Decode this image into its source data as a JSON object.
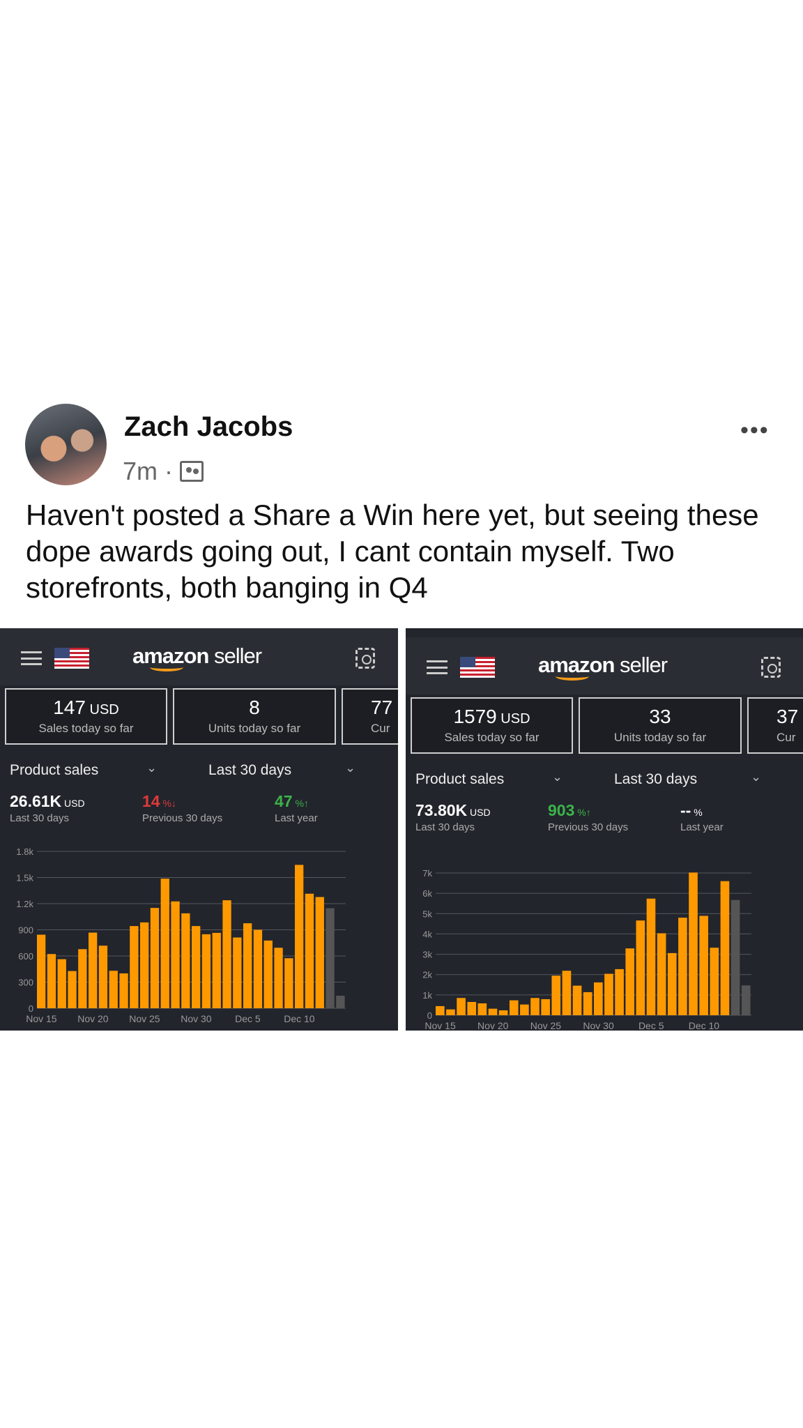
{
  "post": {
    "author": "Zach Jacobs",
    "time": "7m",
    "audience_icon": "group-icon",
    "more_icon": "more-dots-icon",
    "more": "•••",
    "text": "Haven't posted a Share a Win here yet, but seeing these dope awards going out, I cant contain myself. Two storefronts, both banging in Q4"
  },
  "screens": [
    {
      "logo_a": "amazon",
      "logo_b": " seller",
      "sales_value": "147",
      "currency": " USD",
      "sales_label": "Sales today so far",
      "units_value": "8",
      "units_label": "Units today so far",
      "third_value": "77",
      "third_label": "Cur",
      "metric": "Product sales",
      "range": "Last 30 days",
      "total": "26.61K",
      "total_unit": " USD",
      "total_label": "Last 30 days",
      "prev_value": "14",
      "prev_suffix": " %↓",
      "prev_label": "Previous 30 days",
      "prev_color": "#e0393a",
      "year_value": "47",
      "year_suffix": " %↑",
      "year_label": "Last year",
      "year_color": "#3bb34a"
    },
    {
      "logo_a": "amazon",
      "logo_b": " seller",
      "sales_value": "1579",
      "currency": " USD",
      "sales_label": "Sales today so far",
      "units_value": "33",
      "units_label": "Units today so far",
      "third_value": "37",
      "third_label": "Cur",
      "metric": "Product sales",
      "range": "Last 30 days",
      "total": "73.80K",
      "total_unit": " USD",
      "total_label": "Last 30 days",
      "prev_value": "903",
      "prev_suffix": " %↑",
      "prev_label": "Previous 30 days",
      "prev_color": "#3bb34a",
      "year_value": "--",
      "year_suffix": " %",
      "year_label": "Last year",
      "year_color": "#ffffff"
    }
  ],
  "chart_data": [
    {
      "type": "bar",
      "ylim": [
        0,
        1800
      ],
      "yticks": [
        "0",
        "300",
        "600",
        "900",
        "1.2k",
        "1.5k",
        "1.8k"
      ],
      "ytick_values": [
        0,
        300,
        600,
        900,
        1200,
        1500,
        1800
      ],
      "xtick_labels": [
        "Nov 15",
        "Nov 20",
        "Nov 25",
        "Nov 30",
        "Dec 5",
        "Dec 10"
      ],
      "grid": true,
      "bar_color": "#ff9900",
      "comparison_color": "#555555",
      "values": [
        844,
        622,
        563,
        427,
        678,
        868,
        718,
        430,
        400,
        943,
        985,
        1151,
        1487,
        1226,
        1089,
        943,
        849,
        865,
        1239,
        812,
        975,
        900,
        777,
        694,
        574,
        1645,
        1314,
        1276
      ],
      "comparison_values": [
        1148,
        144
      ]
    },
    {
      "type": "bar",
      "ylim": [
        0,
        7000
      ],
      "yticks": [
        "0",
        "1k",
        "2k",
        "3k",
        "4k",
        "5k",
        "6k",
        "7k"
      ],
      "ytick_values": [
        0,
        1000,
        2000,
        3000,
        4000,
        5000,
        6000,
        7000
      ],
      "xtick_labels": [
        "Nov 15",
        "Nov 20",
        "Nov 25",
        "Nov 30",
        "Dec 5",
        "Dec 10"
      ],
      "grid": true,
      "bar_color": "#ff9900",
      "comparison_color": "#555555",
      "values": [
        447,
        286,
        848,
        653,
        584,
        321,
        241,
        733,
        527,
        848,
        790,
        1947,
        2188,
        1455,
        1134,
        1615,
        2039,
        2268,
        3288,
        4662,
        5739,
        4032,
        3058,
        4800,
        7022,
        4891,
        3322,
        6598
      ],
      "comparison_values": [
        5670,
        1466
      ]
    }
  ]
}
